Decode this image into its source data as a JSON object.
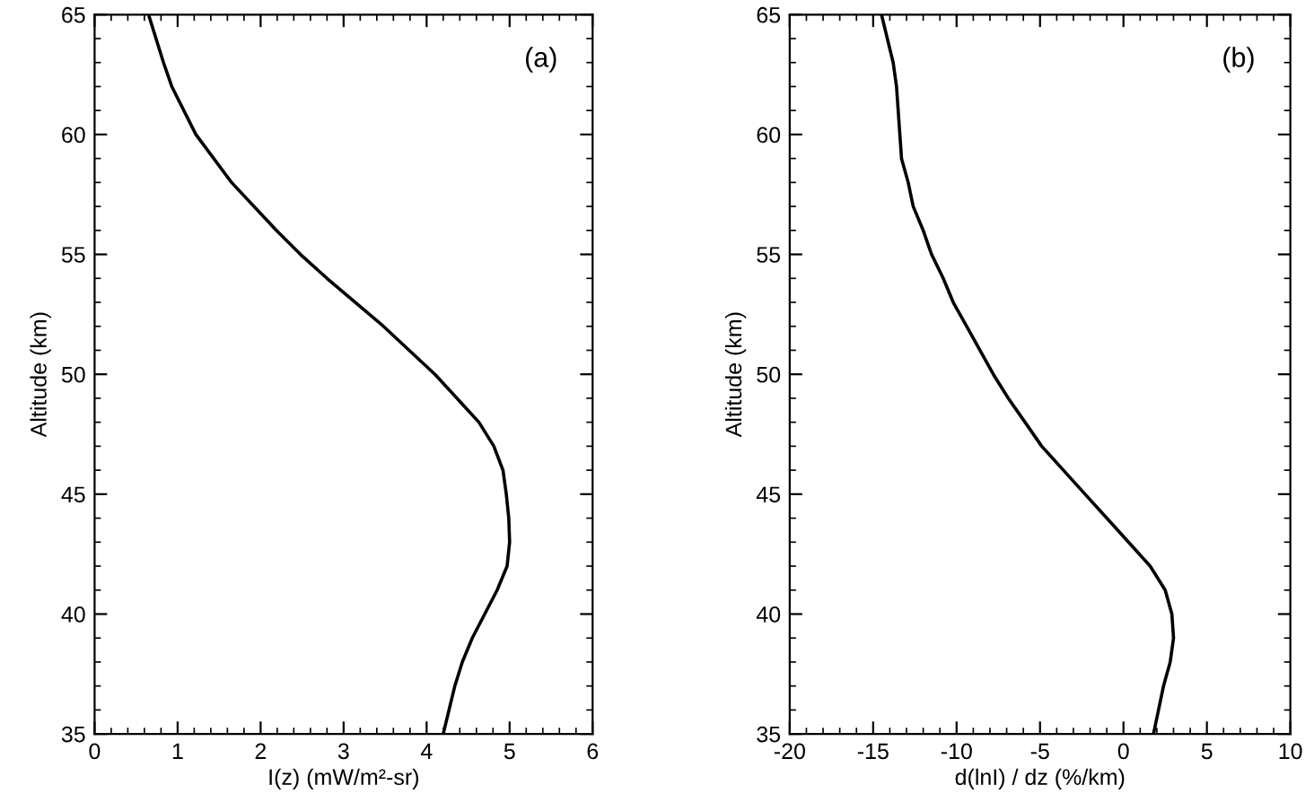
{
  "chart_data": [
    {
      "type": "line",
      "orientation": "horizontal",
      "xlabel": "I(z) (mW/m²-sr)",
      "ylabel": "Altitude (km)",
      "annotations": [
        "(a)"
      ],
      "x": [
        65,
        63,
        62,
        60,
        58,
        56,
        55,
        54,
        52,
        50,
        48,
        47,
        46,
        45,
        44,
        43,
        42,
        41,
        40,
        39,
        38,
        37,
        36,
        35
      ],
      "series": [
        {
          "color": "#000000",
          "values": [
            0.65,
            0.83,
            0.93,
            1.22,
            1.65,
            2.19,
            2.48,
            2.8,
            3.48,
            4.1,
            4.63,
            4.81,
            4.92,
            4.96,
            4.99,
            5.0,
            4.97,
            4.85,
            4.7,
            4.55,
            4.43,
            4.34,
            4.27,
            4.2
          ]
        }
      ],
      "xlim": [
        0,
        6
      ],
      "xticks": [
        0,
        1,
        2,
        3,
        4,
        5,
        6
      ],
      "ylim": [
        35,
        65
      ],
      "yticks": [
        35,
        40,
        45,
        50,
        55,
        60,
        65
      ],
      "grid": false,
      "legend": false
    },
    {
      "type": "line",
      "orientation": "horizontal",
      "xlabel": "d(lnI) / dz (%/km)",
      "ylabel": "Altitude (km)",
      "annotations": [
        "(b)"
      ],
      "x": [
        65,
        63,
        62,
        60,
        59,
        58,
        57,
        56,
        55,
        54,
        53,
        52,
        51,
        50,
        49,
        48,
        47,
        46,
        45,
        44,
        43,
        42,
        41,
        40,
        39,
        38,
        37,
        36,
        35
      ],
      "series": [
        {
          "color": "#000000",
          "values": [
            -14.5,
            -13.8,
            -13.6,
            -13.4,
            -13.3,
            -12.9,
            -12.6,
            -12.0,
            -11.5,
            -10.8,
            -10.2,
            -9.4,
            -8.6,
            -7.8,
            -6.9,
            -5.9,
            -4.9,
            -3.6,
            -2.3,
            -1.0,
            0.3,
            1.6,
            2.5,
            2.9,
            3.0,
            2.8,
            2.4,
            2.1,
            1.8
          ]
        }
      ],
      "xlim": [
        -20,
        10
      ],
      "xticks": [
        -20,
        -15,
        -10,
        -5,
        0,
        5,
        10
      ],
      "ylim": [
        35,
        65
      ],
      "yticks": [
        35,
        40,
        45,
        50,
        55,
        60,
        65
      ],
      "grid": false,
      "legend": false
    }
  ]
}
